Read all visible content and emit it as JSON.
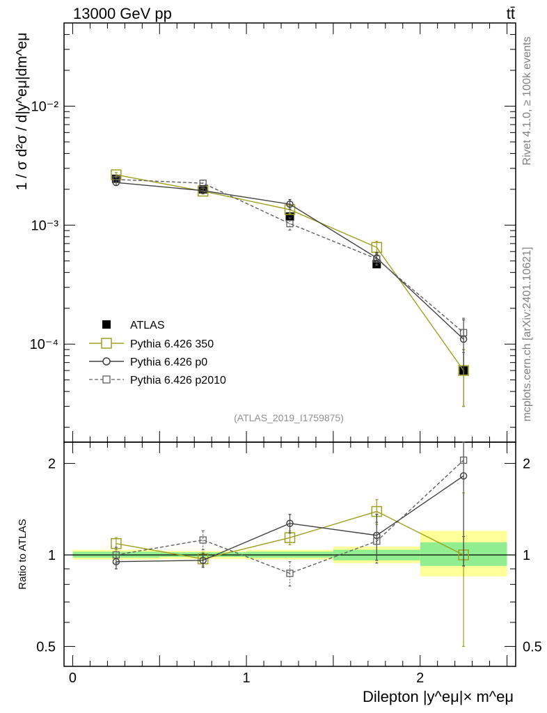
{
  "header": {
    "left_title": "13000 GeV pp",
    "right_title": "tt̄"
  },
  "side_text": {
    "rivet": "Rivet 4.1.0, ≥ 100k events",
    "mcplots": "mcplots.cern.ch [arXiv:2401.10621]"
  },
  "analysis_label": "(ATLAS_2019_I1759875)",
  "colors": {
    "atlas": "#000000",
    "p350": "#a0a020",
    "p0": "#404040",
    "p2010": "#606060",
    "band_green": "#90ee90",
    "band_yellow": "#ffff99"
  },
  "chart_data": [
    {
      "type": "line",
      "panel": "main",
      "ylabel": "1 / σ  d²σ / d|y^eμ|dm^eμ",
      "yscale": "log",
      "xlim": [
        -0.05,
        2.55
      ],
      "ylim": [
        1.5e-05,
        0.05
      ],
      "ytick_labels": [
        "10⁻⁴",
        "10⁻³",
        "10⁻²"
      ],
      "ytick_values": [
        0.0001,
        0.001,
        0.01
      ],
      "legend": [
        "ATLAS",
        "Pythia 6.426 350",
        "Pythia 6.426 p0",
        "Pythia 6.426 p2010"
      ],
      "x": [
        0.25,
        0.75,
        1.25,
        1.75,
        2.25
      ],
      "series": [
        {
          "name": "ATLAS",
          "style": "filled-square",
          "values": [
            0.00245,
            0.002,
            0.00118,
            0.00047,
            6e-05
          ],
          "err_low": [
            7e-05,
            5e-05,
            5e-05,
            3e-05,
            3e-05
          ],
          "err_high": [
            7e-05,
            5e-05,
            5e-05,
            3e-05,
            3e-05
          ]
        },
        {
          "name": "Pythia 6.426 350",
          "style": "open-square-solid",
          "values": [
            0.00265,
            0.00193,
            0.00135,
            0.00065,
            6e-05
          ],
          "err_low": [
            0.00012,
            0.0001,
            0.0001,
            8e-05,
            3e-05
          ],
          "err_high": [
            0.00012,
            0.0001,
            0.0001,
            8e-05,
            3e-05
          ]
        },
        {
          "name": "Pythia 6.426 p0",
          "style": "open-circle-solid",
          "values": [
            0.00228,
            0.00195,
            0.0015,
            0.00053,
            0.00011
          ],
          "err_low": [
            0.00012,
            0.0001,
            0.00014,
            6e-05,
            5e-05
          ],
          "err_high": [
            0.00012,
            0.0001,
            0.00014,
            6e-05,
            5e-05
          ]
        },
        {
          "name": "Pythia 6.426 p2010",
          "style": "open-square-dashed",
          "values": [
            0.00242,
            0.00225,
            0.00103,
            0.00052,
            0.000125
          ],
          "err_low": [
            0.00014,
            0.00014,
            0.00012,
            6e-05,
            4e-05
          ],
          "err_high": [
            0.00014,
            0.00014,
            0.00012,
            6e-05,
            4e-05
          ]
        }
      ]
    },
    {
      "type": "line",
      "panel": "ratio",
      "xlabel": "Dilepton |y^eμ|× m^eμ",
      "ylabel": "Ratio to ATLAS",
      "yscale": "log",
      "xlim": [
        -0.05,
        2.55
      ],
      "ylim": [
        0.43,
        2.35
      ],
      "ytick_labels": [
        "0.5",
        "1",
        "2"
      ],
      "ytick_values": [
        0.5,
        1,
        2
      ],
      "xtick_labels": [
        "0",
        "1",
        "2"
      ],
      "xtick_values": [
        0,
        1,
        2
      ],
      "x": [
        0.25,
        0.75,
        1.25,
        1.75,
        2.25
      ],
      "bands": [
        {
          "xlo": 0.0,
          "xhi": 0.5,
          "green": [
            0.98,
            1.025
          ],
          "yellow": [
            0.965,
            1.04
          ]
        },
        {
          "xlo": 0.5,
          "xhi": 1.0,
          "green": [
            0.985,
            1.02
          ],
          "yellow": [
            0.97,
            1.03
          ]
        },
        {
          "xlo": 1.0,
          "xhi": 1.5,
          "green": [
            0.98,
            1.025
          ],
          "yellow": [
            0.965,
            1.04
          ]
        },
        {
          "xlo": 1.5,
          "xhi": 2.0,
          "green": [
            0.96,
            1.04
          ],
          "yellow": [
            0.94,
            1.065
          ]
        },
        {
          "xlo": 2.0,
          "xhi": 2.5,
          "green": [
            0.92,
            1.1
          ],
          "yellow": [
            0.85,
            1.2
          ]
        }
      ],
      "series": [
        {
          "name": "Pythia 6.426 350",
          "style": "open-square-solid",
          "values": [
            1.09,
            0.97,
            1.14,
            1.39,
            1.0
          ],
          "err_low": [
            0.05,
            0.05,
            0.06,
            0.13,
            0.5
          ],
          "err_high": [
            0.05,
            0.05,
            0.06,
            0.13,
            0.6
          ]
        },
        {
          "name": "Pythia 6.426 p0",
          "style": "open-circle-solid",
          "values": [
            0.95,
            0.96,
            1.27,
            1.16,
            1.82
          ],
          "err_low": [
            0.05,
            0.05,
            0.09,
            0.2,
            0.9
          ],
          "err_high": [
            0.05,
            0.05,
            0.09,
            0.2,
            0.9
          ]
        },
        {
          "name": "Pythia 6.426 p2010",
          "style": "open-square-dashed",
          "values": [
            1.0,
            1.12,
            0.87,
            1.11,
            2.05
          ],
          "err_low": [
            0.06,
            0.08,
            0.08,
            0.17,
            0.9
          ],
          "err_high": [
            0.06,
            0.08,
            0.08,
            0.17,
            0.9
          ]
        }
      ]
    }
  ]
}
